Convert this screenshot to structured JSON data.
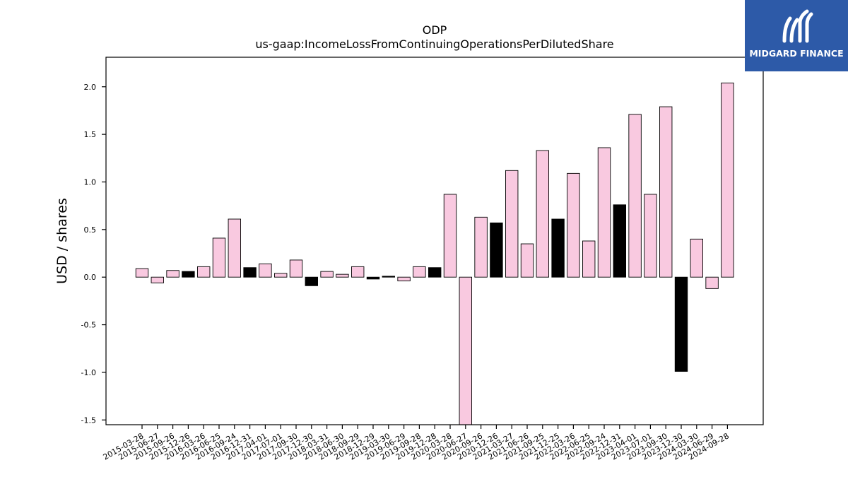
{
  "logo": {
    "text": "MIDGARD FINANCE",
    "icon": "midgard-finance-logo-icon",
    "background": "#2d5aa8"
  },
  "chart_data": {
    "type": "bar",
    "title": "ODP",
    "subtitle": "us-gaap:IncomeLossFromContinuingOperationsPerDilutedShare",
    "xlabel": "",
    "ylabel": "USD / shares",
    "ylim": [
      -1.55,
      2.31
    ],
    "yticks": [
      -1.5,
      -1.0,
      -0.5,
      0.0,
      0.5,
      1.0,
      1.5,
      2.0
    ],
    "grid": false,
    "colors": {
      "default": "#f9c9e0",
      "highlight": "#000000",
      "edge": "#000000"
    },
    "categories": [
      "2015-03-28",
      "2015-06-27",
      "2015-09-26",
      "2015-12-26",
      "2016-03-26",
      "2016-06-25",
      "2016-09-24",
      "2016-12-31",
      "2017-04-01",
      "2017-07-01",
      "2017-09-30",
      "2017-12-30",
      "2018-03-31",
      "2018-06-30",
      "2018-09-29",
      "2018-12-29",
      "2019-03-30",
      "2019-06-29",
      "2019-09-28",
      "2019-12-28",
      "2020-03-28",
      "2020-06-27",
      "2020-09-26",
      "2020-12-26",
      "2021-03-27",
      "2021-06-26",
      "2021-09-25",
      "2021-12-25",
      "2022-03-26",
      "2022-06-25",
      "2022-09-24",
      "2022-12-31",
      "2023-04-01",
      "2023-07-01",
      "2023-09-30",
      "2023-12-30",
      "2024-03-30",
      "2024-06-29",
      "2024-09-28"
    ],
    "values": [
      0.09,
      -0.06,
      0.07,
      0.06,
      0.11,
      0.41,
      0.61,
      0.1,
      0.14,
      0.04,
      0.18,
      -0.09,
      0.06,
      0.03,
      0.11,
      -0.02,
      0.01,
      -0.04,
      0.11,
      0.1,
      0.87,
      -1.55,
      0.63,
      0.57,
      1.12,
      0.35,
      1.33,
      0.61,
      1.09,
      0.38,
      1.36,
      0.76,
      1.71,
      0.87,
      1.79,
      -0.99,
      0.4,
      -0.12,
      2.04
    ],
    "highlight": [
      false,
      false,
      false,
      true,
      false,
      false,
      false,
      true,
      false,
      false,
      false,
      true,
      false,
      false,
      false,
      true,
      true,
      false,
      false,
      true,
      false,
      false,
      false,
      true,
      false,
      false,
      false,
      true,
      false,
      false,
      false,
      true,
      false,
      false,
      false,
      true,
      false,
      false,
      false
    ]
  }
}
